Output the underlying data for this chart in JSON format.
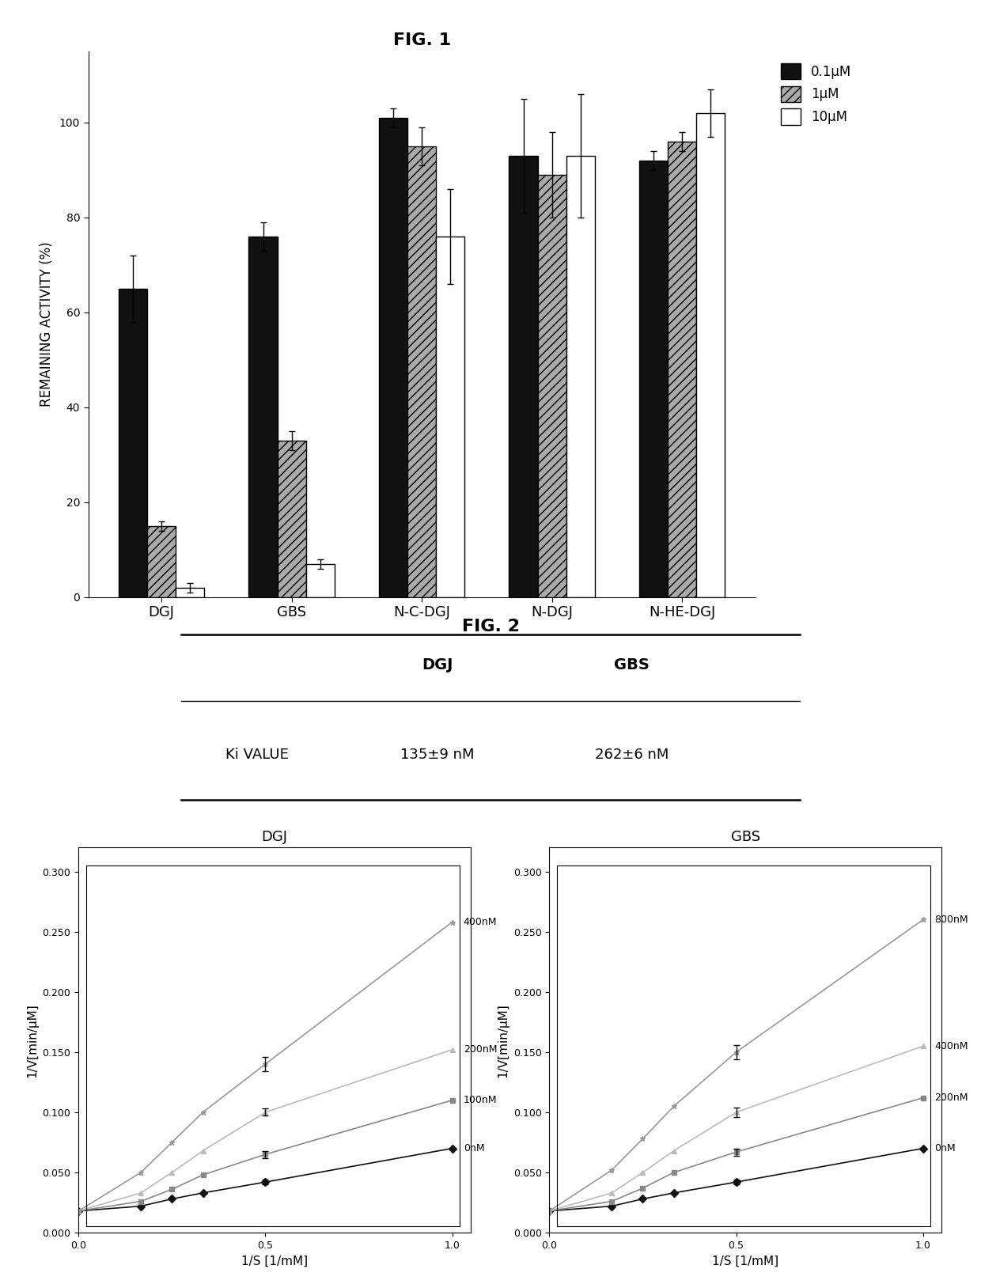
{
  "fig1_title": "FIG. 1",
  "fig2_title": "FIG. 2",
  "bar_categories": [
    "DGJ",
    "GBS",
    "N-C-DGJ",
    "N-DGJ",
    "N-HE-DGJ"
  ],
  "bar_values": {
    "0.1uM": [
      65,
      76,
      101,
      93,
      92
    ],
    "1uM": [
      15,
      33,
      95,
      89,
      96
    ],
    "10uM": [
      2,
      7,
      76,
      93,
      102
    ]
  },
  "bar_errors": {
    "0.1uM": [
      7,
      3,
      2,
      12,
      2
    ],
    "1uM": [
      1,
      2,
      4,
      9,
      2
    ],
    "10uM": [
      1,
      1,
      10,
      13,
      5
    ]
  },
  "bar_colors": {
    "0.1uM": "#111111",
    "1uM": "#aaaaaa",
    "10uM": "#ffffff"
  },
  "bar_hatch": {
    "0.1uM": null,
    "1uM": "///",
    "10uM": null
  },
  "ylabel_fig1": "REMAINING ACTIVITY (%)",
  "ylim_fig1": [
    0,
    115
  ],
  "yticks_fig1": [
    0,
    20,
    40,
    60,
    80,
    100
  ],
  "legend_labels": [
    "0.1μM",
    "1μM",
    "10μM"
  ],
  "dgj_lines": {
    "labels": [
      "400nM",
      "200nM",
      "100nM",
      "0nM"
    ],
    "x_points": [
      0,
      0.167,
      0.25,
      0.333,
      0.5,
      1.0
    ],
    "y_data": {
      "400nM": [
        0.018,
        0.05,
        0.075,
        0.1,
        0.14,
        0.258
      ],
      "200nM": [
        0.018,
        0.033,
        0.05,
        0.068,
        0.1,
        0.152
      ],
      "100nM": [
        0.018,
        0.026,
        0.036,
        0.048,
        0.065,
        0.11
      ],
      "0nM": [
        0.018,
        0.022,
        0.028,
        0.033,
        0.042,
        0.07
      ]
    },
    "y_err_at_half": {
      "400nM": 0.006,
      "200nM": 0.003,
      "100nM": 0.003,
      "0nM": 0.002
    },
    "colors": {
      "400nM": "#999999",
      "200nM": "#bbbbbb",
      "100nM": "#888888",
      "0nM": "#111111"
    },
    "markers": {
      "400nM": "*",
      "200nM": "^",
      "100nM": "s",
      "0nM": "D"
    }
  },
  "gbs_lines": {
    "labels": [
      "800nM",
      "400nM",
      "200nM",
      "0nM"
    ],
    "x_points": [
      0,
      0.167,
      0.25,
      0.333,
      0.5,
      1.0
    ],
    "y_data": {
      "800nM": [
        0.018,
        0.052,
        0.078,
        0.105,
        0.15,
        0.26
      ],
      "400nM": [
        0.018,
        0.033,
        0.05,
        0.068,
        0.1,
        0.155
      ],
      "200nM": [
        0.018,
        0.026,
        0.037,
        0.05,
        0.067,
        0.112
      ],
      "0nM": [
        0.018,
        0.022,
        0.028,
        0.033,
        0.042,
        0.07
      ]
    },
    "y_err_at_half": {
      "800nM": 0.006,
      "400nM": 0.004,
      "200nM": 0.003,
      "0nM": 0.002
    },
    "colors": {
      "800nM": "#999999",
      "400nM": "#bbbbbb",
      "200nM": "#888888",
      "0nM": "#111111"
    },
    "markers": {
      "800nM": "*",
      "400nM": "^",
      "200nM": "s",
      "0nM": "D"
    }
  },
  "line_ylabel": "1/V[min/μM]",
  "line_xlabel": "1/S [1/mM]",
  "line_xlim": [
    0,
    1.05
  ],
  "line_ylim": [
    0,
    0.32
  ],
  "line_yticks": [
    0.0,
    0.05,
    0.1,
    0.15,
    0.2,
    0.25,
    0.3
  ],
  "line_xticks": [
    0,
    0.5,
    1
  ]
}
